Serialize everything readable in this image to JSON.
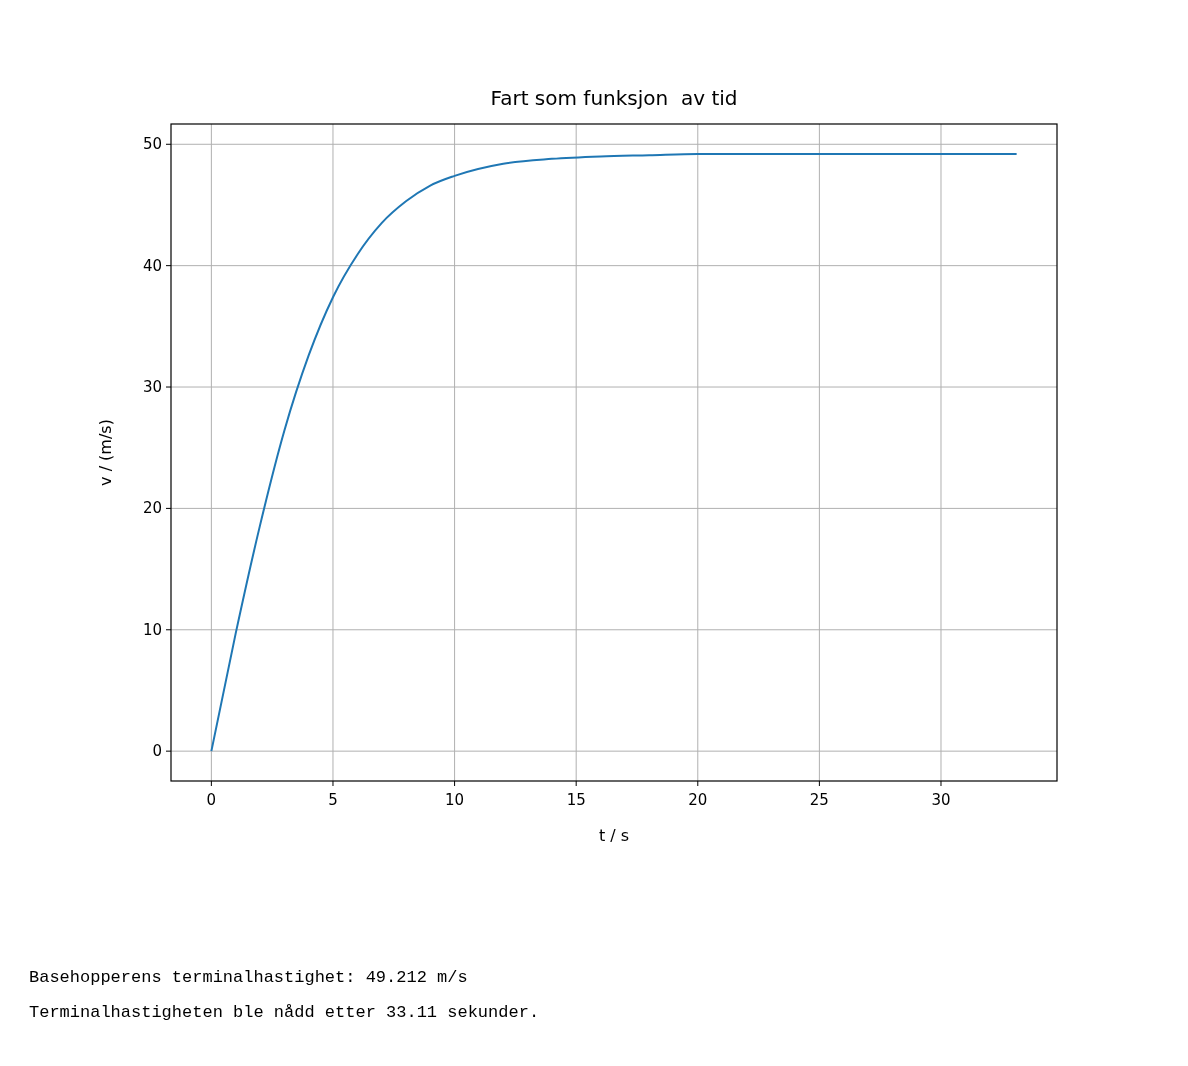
{
  "chart_data": {
    "type": "line",
    "title": "Fart som funksjon  av tid",
    "xlabel": "t / s",
    "ylabel": "v / (m/s)",
    "x": [
      0,
      1,
      2,
      3,
      4,
      5,
      6,
      7,
      8,
      9,
      10,
      12,
      14,
      16,
      18,
      20,
      25,
      30,
      33.11
    ],
    "series": [
      {
        "color": "#1f77b4",
        "values": [
          0,
          9.7,
          18.6,
          26.4,
          32.6,
          37.4,
          40.9,
          43.5,
          45.3,
          46.6,
          47.4,
          48.4,
          48.8,
          49.0,
          49.1,
          49.2,
          49.2,
          49.2,
          49.2
        ]
      }
    ],
    "xlim": [
      -1.66,
      34.77
    ],
    "ylim": [
      -2.46,
      51.67
    ],
    "xticks": [
      0,
      5,
      10,
      15,
      20,
      25,
      30
    ],
    "yticks": [
      0,
      10,
      20,
      30,
      40,
      50
    ],
    "grid": true,
    "marker": "none",
    "line_style": "solid",
    "annotations": [
      "Basehopperens terminalhastighet: 49.212 m/s",
      "Terminalhastigheten ble nådd etter 33.11 sekunder."
    ]
  }
}
